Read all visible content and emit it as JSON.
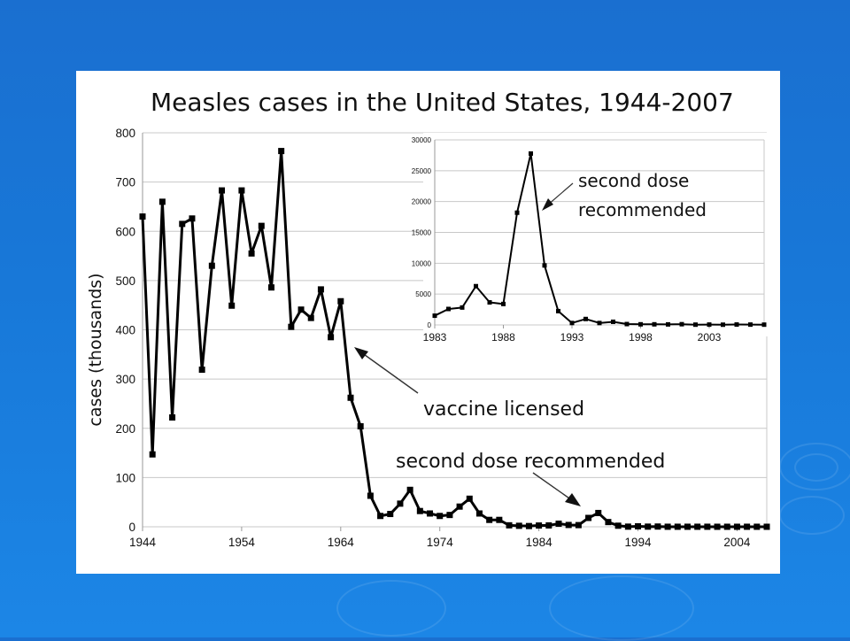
{
  "colors": {
    "background": "#1a6fd0",
    "card": "#ffffff",
    "series": "#000000",
    "grid": "#c8c8c8"
  },
  "chart_data": [
    {
      "type": "line",
      "title": "Measles cases in the United States, 1944-2007",
      "xlabel": "",
      "ylabel": "cases (thousands)",
      "xlim": [
        1944,
        2007
      ],
      "ylim": [
        0,
        800
      ],
      "xticks": [
        "1944",
        "1954",
        "1964",
        "1974",
        "1984",
        "1994",
        "2004"
      ],
      "yticks": [
        "0",
        "100",
        "200",
        "300",
        "400",
        "500",
        "600",
        "700",
        "800"
      ],
      "grid": true,
      "x": [
        1944,
        1945,
        1946,
        1947,
        1948,
        1949,
        1950,
        1951,
        1952,
        1953,
        1954,
        1955,
        1956,
        1957,
        1958,
        1959,
        1960,
        1961,
        1962,
        1963,
        1964,
        1965,
        1966,
        1967,
        1968,
        1969,
        1970,
        1971,
        1972,
        1973,
        1974,
        1975,
        1976,
        1977,
        1978,
        1979,
        1980,
        1981,
        1982,
        1983,
        1984,
        1985,
        1986,
        1987,
        1988,
        1989,
        1990,
        1991,
        1992,
        1993,
        1994,
        1995,
        1996,
        1997,
        1998,
        1999,
        2000,
        2001,
        2002,
        2003,
        2004,
        2005,
        2006,
        2007
      ],
      "values": [
        630,
        147,
        660,
        222,
        615,
        626,
        319,
        530,
        683,
        449,
        683,
        555,
        611,
        486,
        763,
        406,
        441,
        424,
        482,
        385,
        458,
        262,
        204,
        63,
        22,
        26,
        47,
        75,
        32,
        27,
        22,
        24,
        41,
        57,
        27,
        14,
        14,
        3,
        2,
        1.5,
        2.6,
        2.8,
        6.3,
        3.7,
        3.4,
        18,
        28,
        9.6,
        2.2,
        0.3,
        1,
        0.3,
        0.5,
        0.1,
        0.1,
        0.1,
        0.1,
        0.1,
        0.04,
        0.05,
        0.04,
        0.07,
        0.06,
        0.04
      ],
      "annotations": [
        {
          "text": "vaccine licensed",
          "x": 1963
        },
        {
          "text": "second dose recommended",
          "x": 1989
        }
      ]
    },
    {
      "type": "line",
      "title": "",
      "xlim": [
        1983,
        2007
      ],
      "ylim": [
        0,
        30000
      ],
      "xticks": [
        "1983",
        "1988",
        "1993",
        "1998",
        "2003"
      ],
      "yticks": [
        "0",
        "5000",
        "10000",
        "15000",
        "20000",
        "25000",
        "30000"
      ],
      "grid": true,
      "x": [
        1983,
        1984,
        1985,
        1986,
        1987,
        1988,
        1989,
        1990,
        1991,
        1992,
        1993,
        1994,
        1995,
        1996,
        1997,
        1998,
        1999,
        2000,
        2001,
        2002,
        2003,
        2004,
        2005,
        2006,
        2007
      ],
      "values": [
        1497,
        2587,
        2822,
        6282,
        3655,
        3396,
        18193,
        27786,
        9643,
        2237,
        312,
        963,
        309,
        508,
        138,
        100,
        100,
        86,
        116,
        44,
        56,
        37,
        66,
        55,
        43
      ],
      "annotations": [
        {
          "text_lines": [
            "second dose",
            "recommended"
          ],
          "x": 1989
        }
      ]
    }
  ]
}
